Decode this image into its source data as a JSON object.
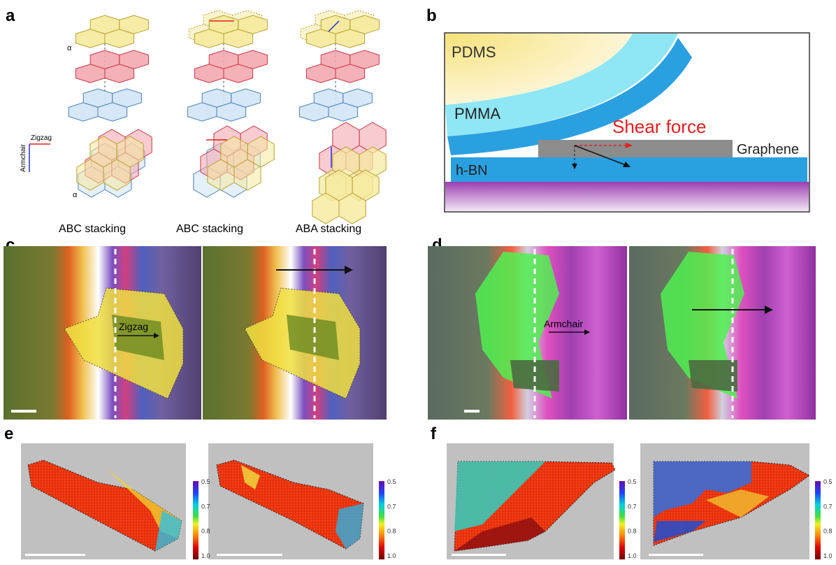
{
  "panels": {
    "a": {
      "label": "a",
      "axes": {
        "zigzag": "Zigzag",
        "armchair": "Armchair"
      },
      "alpha": [
        "α",
        "α"
      ],
      "captions": [
        "ABC stacking",
        "ABC stacking",
        "ABA stacking"
      ]
    },
    "b": {
      "label": "b",
      "layers": {
        "pdms": "PDMS",
        "pmma": "PMMA",
        "graphene": "Graphene",
        "hbn": "h-BN"
      },
      "force": "Shear force"
    },
    "c": {
      "label": "c",
      "direction": "Zigzag"
    },
    "d": {
      "label": "d",
      "direction": "Armchair"
    },
    "e": {
      "label": "e",
      "colorbars": [
        [
          "0.5",
          "0.7",
          "0.8",
          "1.0"
        ],
        [
          "0.5",
          "0.7",
          "0.8",
          "1.0"
        ]
      ]
    },
    "f": {
      "label": "f",
      "colorbars": [
        [
          "0.5",
          "0.7",
          "0.8",
          "1.0"
        ],
        [
          "0.5",
          "0.7",
          "0.8",
          "1.0"
        ]
      ]
    }
  }
}
